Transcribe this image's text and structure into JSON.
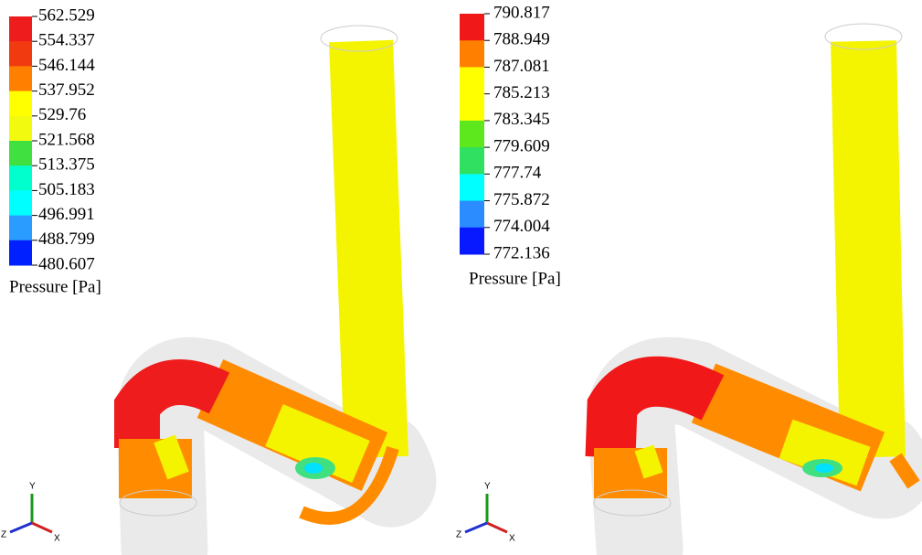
{
  "panels": [
    {
      "legend": {
        "labels": [
          "562.529",
          "554.337",
          "546.144",
          "537.952",
          "529.76",
          "521.568",
          "513.375",
          "505.183",
          "496.991",
          "488.799",
          "480.607"
        ],
        "colors": [
          "#ee1c1c",
          "#f23a10",
          "#ff8000",
          "#ffff00",
          "#f2fa10",
          "#40e040",
          "#00ffcc",
          "#00ffff",
          "#2a9bff",
          "#0020ff"
        ],
        "title": "Pressure [Pa]"
      },
      "triad": {
        "x": "X",
        "y": "Y",
        "z": "Z"
      }
    },
    {
      "legend": {
        "labels": [
          "790.817",
          "788.949",
          "787.081",
          "785.213",
          "783.345",
          "779.609",
          "777.74",
          "775.872",
          "774.004",
          "772.136"
        ],
        "colors": [
          "#f01818",
          "#ff8000",
          "#ffff00",
          "#ffff00",
          "#5ce81c",
          "#30e060",
          "#00ffff",
          "#2a8cff",
          "#0818ff"
        ],
        "title": "Pressure [Pa]"
      },
      "triad": {
        "x": "X",
        "y": "Y",
        "z": "Z"
      }
    }
  ]
}
